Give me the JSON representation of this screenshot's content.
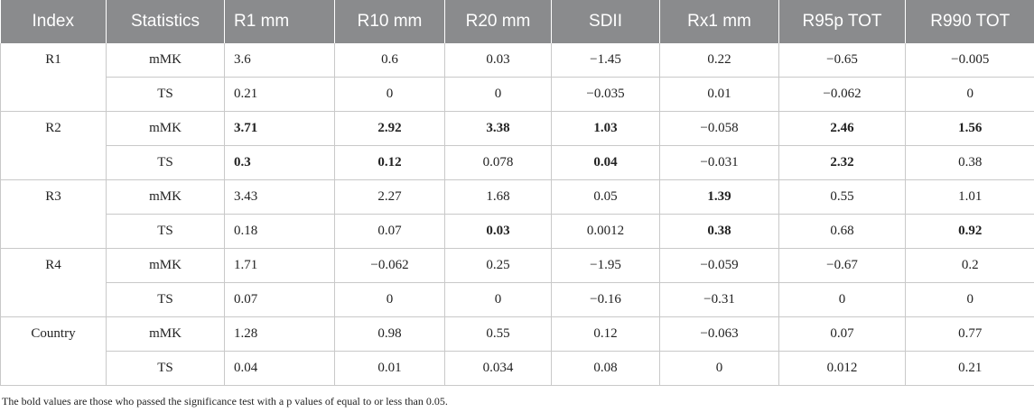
{
  "headers": [
    "Index",
    "Statistics",
    "R1 mm",
    "R10 mm",
    "R20 mm",
    "SDII",
    "Rx1 mm",
    "R95p TOT",
    "R990 TOT"
  ],
  "groups": [
    {
      "index": "R1",
      "rows": [
        {
          "stat": "mMK",
          "values": [
            "3.6",
            "0.6",
            "0.03",
            "−1.45",
            "0.22",
            "−0.65",
            "−0.005"
          ],
          "bold": [
            false,
            false,
            false,
            false,
            false,
            false,
            false
          ]
        },
        {
          "stat": "TS",
          "values": [
            "0.21",
            "0",
            "0",
            "−0.035",
            "0.01",
            "−0.062",
            "0"
          ],
          "bold": [
            false,
            false,
            false,
            false,
            false,
            false,
            false
          ]
        }
      ]
    },
    {
      "index": "R2",
      "rows": [
        {
          "stat": "mMK",
          "values": [
            "3.71",
            "2.92",
            "3.38",
            "1.03",
            "−0.058",
            "2.46",
            "1.56"
          ],
          "bold": [
            true,
            true,
            true,
            true,
            false,
            true,
            true
          ]
        },
        {
          "stat": "TS",
          "values": [
            "0.3",
            "0.12",
            "0.078",
            "0.04",
            "−0.031",
            "2.32",
            "0.38"
          ],
          "bold": [
            true,
            true,
            false,
            true,
            false,
            true,
            false
          ]
        }
      ]
    },
    {
      "index": "R3",
      "rows": [
        {
          "stat": "mMK",
          "values": [
            "3.43",
            "2.27",
            "1.68",
            "0.05",
            "1.39",
            "0.55",
            "1.01"
          ],
          "bold": [
            false,
            false,
            false,
            false,
            true,
            false,
            false
          ]
        },
        {
          "stat": "TS",
          "values": [
            "0.18",
            "0.07",
            "0.03",
            "0.0012",
            "0.38",
            "0.68",
            "0.92"
          ],
          "bold": [
            false,
            false,
            true,
            false,
            true,
            false,
            true
          ]
        }
      ]
    },
    {
      "index": "R4",
      "rows": [
        {
          "stat": "mMK",
          "values": [
            "1.71",
            "−0.062",
            "0.25",
            "−1.95",
            "−0.059",
            "−0.67",
            "0.2"
          ],
          "bold": [
            false,
            false,
            false,
            false,
            false,
            false,
            false
          ]
        },
        {
          "stat": "TS",
          "values": [
            "0.07",
            "0",
            "0",
            "−0.16",
            "−0.31",
            "0",
            "0"
          ],
          "bold": [
            false,
            false,
            false,
            false,
            false,
            false,
            false
          ]
        }
      ]
    },
    {
      "index": "Country",
      "rows": [
        {
          "stat": "mMK",
          "values": [
            "1.28",
            "0.98",
            "0.55",
            "0.12",
            "−0.063",
            "0.07",
            "0.77"
          ],
          "bold": [
            false,
            false,
            false,
            false,
            false,
            false,
            false
          ]
        },
        {
          "stat": "TS",
          "values": [
            "0.04",
            "0.01",
            "0.034",
            "0.08",
            "0",
            "0.012",
            "0.21"
          ],
          "bold": [
            false,
            false,
            false,
            false,
            false,
            false,
            false
          ]
        }
      ]
    }
  ],
  "footnote": "The bold values are those who passed the significance test with a p values of equal to or less than 0.05."
}
